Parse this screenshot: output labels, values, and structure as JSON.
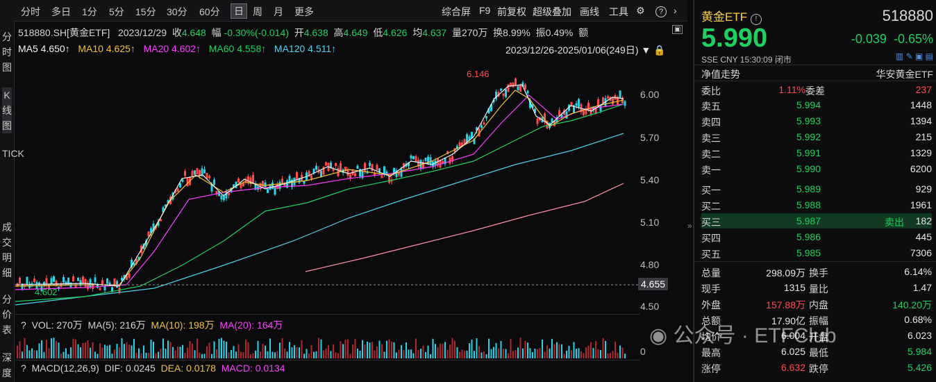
{
  "toolbar": {
    "tabs": [
      "分时",
      "多日",
      "1分",
      "5分",
      "15分",
      "30分",
      "60分",
      "日",
      "周",
      "月",
      "更多"
    ],
    "active_tab": "日",
    "tools": [
      "综合屏",
      "F9",
      "前复权",
      "超级叠加",
      "画线",
      "工具"
    ]
  },
  "left_tabs": {
    "t1": "分时图",
    "t2": "K线图",
    "t3": "TICK",
    "t4": "成交明细",
    "t5": "分价表",
    "t6": "深度"
  },
  "info_line1": {
    "code": "518880.SH[黄金ETF]",
    "date": "2023/12/29",
    "close_lab": "收",
    "close": "4.648",
    "change_lab": "幅",
    "change": "-0.30%(-0.014)",
    "open_lab": "开",
    "open": "4.638",
    "high_lab": "高",
    "high": "4.649",
    "low_lab": "低",
    "low": "4.626",
    "avg_lab": "均",
    "avg": "4.637",
    "vol": "量270万",
    "turn": "换8.99%",
    "amp": "振0.49%",
    "amt": "额"
  },
  "info_line2": {
    "ma5": "MA5 4.650↑",
    "ma10": "MA10 4.625↑",
    "ma20": "MA20 4.602↑",
    "ma60": "MA60 4.558↑",
    "ma120": "MA120 4.511↑"
  },
  "range": "2023/12/26-2025/01/06(249日)",
  "y_axis": [
    "6.00",
    "5.70",
    "5.40",
    "5.10",
    "4.80",
    "4.50"
  ],
  "vol_axis": "0",
  "price_box": "4.655",
  "annot_high": "6.146",
  "annot_low": "4.602",
  "vol_line": {
    "vol": "VOL: 270万",
    "ma5": "MA(5): 216万",
    "ma10": "MA(10): 198万",
    "ma20": "MA(20): 164万"
  },
  "macd_line": {
    "macd": "MACD(12,26,9)",
    "dif": "DIF: 0.0245",
    "dea": "DEA: 0.0178",
    "val": "MACD: 0.0134"
  },
  "colors": {
    "up": "#ff4b4b",
    "down": "#27d3e6",
    "ma5": "#f2f2f2",
    "ma10": "#f2c22e",
    "ma20": "#ff3cff",
    "ma60": "#1fcf5f",
    "ma120": "#4fd2ea",
    "ma250": "#ff8fa8"
  },
  "quote": {
    "name": "黄金ETF",
    "code": "518880",
    "price": "5.990",
    "chg": "-0.039",
    "pct": "-0.65%",
    "status": "SSE  CNY  15:30:09  闭市",
    "nav": "净值走势",
    "fund": "华安黄金ETF",
    "weibi_lab": "委比",
    "weibi": "1.11%",
    "weicha_lab": "委差",
    "weicha": "237",
    "asks": [
      {
        "l": "卖五",
        "p": "5.994",
        "v": "1448"
      },
      {
        "l": "卖四",
        "p": "5.993",
        "v": "1394"
      },
      {
        "l": "卖三",
        "p": "5.992",
        "v": "215"
      },
      {
        "l": "卖二",
        "p": "5.991",
        "v": "1329"
      },
      {
        "l": "卖一",
        "p": "5.990",
        "v": "6200"
      }
    ],
    "bids": [
      {
        "l": "买一",
        "p": "5.989",
        "v": "929"
      },
      {
        "l": "买二",
        "p": "5.988",
        "v": "1961"
      },
      {
        "l": "买三",
        "p": "5.987",
        "v": "182",
        "tag": "卖出"
      },
      {
        "l": "买四",
        "p": "5.986",
        "v": "445"
      },
      {
        "l": "买五",
        "p": "5.985",
        "v": "7306"
      }
    ],
    "stats": [
      {
        "a": "总量",
        "av": "298.09万",
        "b": "换手",
        "bv": "6.14%"
      },
      {
        "a": "现手",
        "av": "1315",
        "b": "量比",
        "bv": "1.47"
      },
      {
        "a": "外盘",
        "av": "157.88万",
        "b": "内盘",
        "bv": "140.20万"
      },
      {
        "a": "总额",
        "av": "17.90亿",
        "b": "振幅",
        "bv": "0.68%"
      },
      {
        "a": "均价",
        "av": "6.004",
        "b": "开盘",
        "bv": "6.023"
      },
      {
        "a": "最高",
        "av": "6.025",
        "b": "最低",
        "bv": "5.984"
      },
      {
        "a": "涨停",
        "av": "6.632",
        "b": "跌停",
        "bv": "5.426"
      }
    ]
  },
  "watermark": "公众号 · ETFClub"
}
